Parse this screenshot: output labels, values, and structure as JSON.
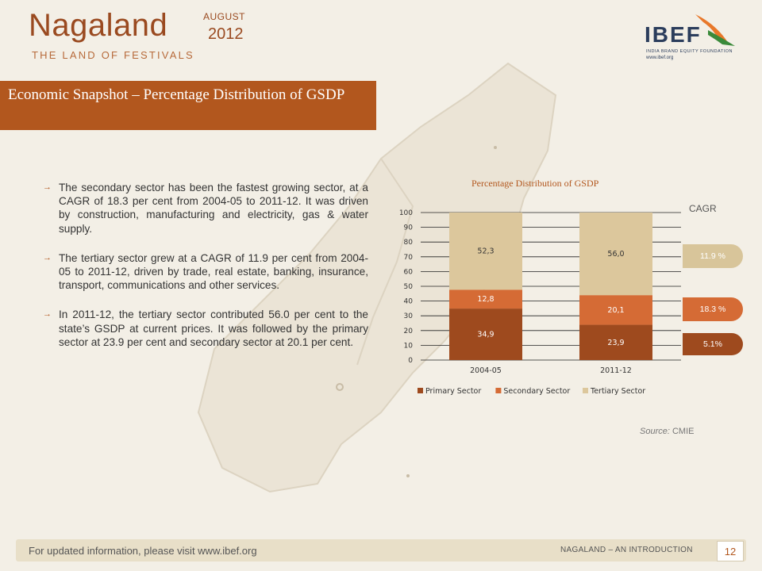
{
  "header": {
    "title": "Nagaland",
    "subtitle": "THE LAND OF FESTIVALS",
    "month": "AUGUST",
    "year": "2012"
  },
  "logo": {
    "name": "IBEF",
    "tagline": "INDIA BRAND EQUITY FOUNDATION",
    "url": "www.ibef.org"
  },
  "section": {
    "title": "Economic Snapshot – Percentage Distribution of GSDP"
  },
  "bullets": [
    {
      "text": "The secondary sector has been the fastest growing sector, at a CAGR of 18.3 per cent from 2004-05 to 2011-12. It was driven by construction, manufacturing and electricity, gas & water supply."
    },
    {
      "text": "The tertiary sector grew at a CAGR of 11.9 per cent from 2004-05 to 2011-12, driven by trade, real estate, banking, insurance, transport, communications and other services."
    },
    {
      "text": "In 2011-12, the tertiary sector contributed 56.0 per cent to the state’s GSDP at current prices. It was followed by the primary sector at 23.9 per cent and secondary sector at 20.1 per cent."
    }
  ],
  "cagr": {
    "label": "CAGR",
    "items": [
      {
        "value": "11.9 %",
        "color": "#d8c59a"
      },
      {
        "value": "18.3 %",
        "color": "#d56b35"
      },
      {
        "value": "5.1%",
        "color": "#9e4a1e"
      }
    ]
  },
  "chart_data": {
    "type": "bar",
    "stacked": true,
    "title": "Percentage Distribution of GSDP",
    "categories": [
      "2004-05",
      "2011-12"
    ],
    "series": [
      {
        "name": "Primary Sector",
        "values": [
          34.9,
          23.9
        ],
        "labels": [
          "34,9",
          "23,9"
        ],
        "color": "#9e4a1e"
      },
      {
        "name": "Secondary Sector",
        "values": [
          12.8,
          20.1
        ],
        "labels": [
          "12,8",
          "20,1"
        ],
        "color": "#d56b35"
      },
      {
        "name": "Tertiary Sector",
        "values": [
          52.3,
          56.0
        ],
        "labels": [
          "52,3",
          "56,0"
        ],
        "color": "#dcc79c"
      }
    ],
    "ylim": [
      0,
      100
    ],
    "yticks": [
      0,
      10,
      20,
      30,
      40,
      50,
      60,
      70,
      80,
      90,
      100
    ],
    "grid": true,
    "legend": "bottom"
  },
  "source": {
    "label": "Source:",
    "value": "CMIE"
  },
  "footer": {
    "left": "For updated information, please visit www.ibef.org",
    "right": "NAGALAND – AN INTRODUCTION",
    "page": "12"
  }
}
